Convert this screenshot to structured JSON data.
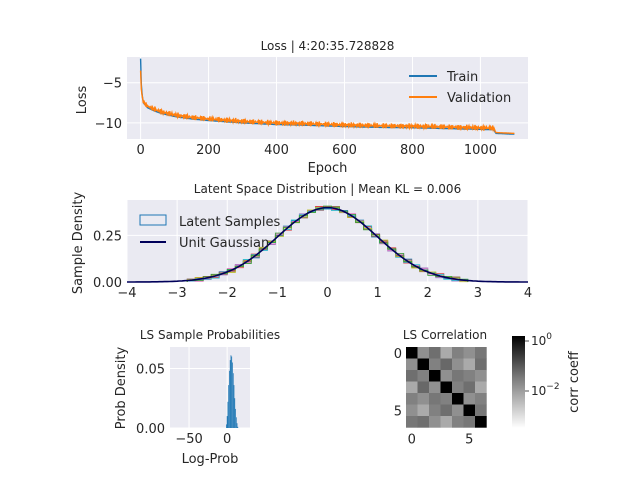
{
  "chart_data": [
    {
      "type": "line",
      "title": "Loss | 4:20:35.728828",
      "xlabel": "Epoch",
      "ylabel": "Loss",
      "xlim": [
        -40,
        1140
      ],
      "ylim": [
        -12.0,
        -1.8
      ],
      "xticks": [
        0,
        200,
        400,
        600,
        800,
        1000
      ],
      "xtick_labels": [
        "0",
        "200",
        "400",
        "600",
        "800",
        "1000"
      ],
      "yticks": [
        -10,
        -5
      ],
      "ytick_labels": [
        "−10",
        "−5"
      ],
      "grid": true,
      "legend_position": "top-right",
      "series": [
        {
          "name": "Train",
          "color": "#1f77b4",
          "x": [
            0,
            2,
            5,
            10,
            20,
            40,
            60,
            100,
            150,
            200,
            300,
            400,
            500,
            600,
            700,
            800,
            900,
            1000,
            1040,
            1045,
            1100
          ],
          "y": [
            -2.0,
            -5.2,
            -6.8,
            -7.6,
            -8.1,
            -8.5,
            -8.8,
            -9.2,
            -9.5,
            -9.7,
            -10.0,
            -10.2,
            -10.3,
            -10.45,
            -10.55,
            -10.6,
            -10.7,
            -10.8,
            -10.85,
            -11.3,
            -11.4
          ]
        },
        {
          "name": "Validation",
          "color": "#ff7f0e",
          "x": [
            0,
            2,
            5,
            10,
            20,
            40,
            60,
            100,
            150,
            200,
            300,
            400,
            500,
            600,
            700,
            800,
            900,
            1000,
            1040,
            1045,
            1100
          ],
          "y": [
            -3.5,
            -5.8,
            -6.9,
            -7.5,
            -7.9,
            -8.3,
            -8.6,
            -9.0,
            -9.3,
            -9.5,
            -9.8,
            -10.0,
            -10.1,
            -10.25,
            -10.35,
            -10.4,
            -10.5,
            -10.6,
            -10.65,
            -11.2,
            -11.3
          ]
        }
      ]
    },
    {
      "type": "line",
      "title": "Latent Space Distribution | Mean KL = 0.006",
      "xlabel": "",
      "ylabel": "Sample Density",
      "xlim": [
        -4,
        4
      ],
      "ylim": [
        0,
        0.44
      ],
      "xticks": [
        -4,
        -3,
        -2,
        -1,
        0,
        1,
        2,
        3,
        4
      ],
      "xtick_labels": [
        "−4",
        "−3",
        "−2",
        "−1",
        "0",
        "1",
        "2",
        "3",
        "4"
      ],
      "yticks": [
        0.0,
        0.25
      ],
      "ytick_labels": [
        "0.00",
        "0.25"
      ],
      "grid": true,
      "legend_position": "top-left",
      "series": [
        {
          "name": "Latent Samples",
          "color": "#1f77b4",
          "style": "step-histogram",
          "distribution": "standard-normal",
          "x_range": [
            -2.8,
            2.8
          ]
        },
        {
          "name": "Unit Gaussian",
          "color": "#00005a",
          "style": "line",
          "distribution": "standard-normal",
          "x_range": [
            -4,
            4
          ]
        }
      ],
      "extra_histogram_colors": [
        "#9467bd",
        "#d62728",
        "#8c564b",
        "#e377c2",
        "#17becf",
        "#bcbd22",
        "#2ca02c"
      ]
    },
    {
      "type": "bar",
      "title": "LS Sample Probabilities",
      "xlabel": "Log-Prob",
      "ylabel": "Prob Density",
      "xlim": [
        -75,
        30
      ],
      "ylim": [
        0,
        0.068
      ],
      "xticks": [
        -50,
        0
      ],
      "xtick_labels": [
        "−50",
        "0"
      ],
      "yticks": [
        0.0,
        0.05
      ],
      "ytick_labels": [
        "0.00",
        "0.05"
      ],
      "grid": true,
      "bar_color": "#1f77b4",
      "bin_centers": [
        -1,
        0,
        1,
        2,
        3,
        4,
        5,
        6,
        7,
        8,
        9,
        10,
        11,
        12,
        13,
        14
      ],
      "values": [
        0.003,
        0.01,
        0.022,
        0.036,
        0.048,
        0.057,
        0.061,
        0.06,
        0.055,
        0.046,
        0.036,
        0.025,
        0.016,
        0.009,
        0.004,
        0.001
      ]
    },
    {
      "type": "heatmap",
      "title": "LS Correlation",
      "xlabel": "",
      "ylabel": "",
      "xticks": [
        0,
        5
      ],
      "xtick_labels": [
        "0",
        "5"
      ],
      "yticks": [
        0,
        5
      ],
      "ytick_labels": [
        "0",
        "5"
      ],
      "colormap": "gray_r",
      "scale": "log",
      "colorbar_label": "corr coeff",
      "colorbar_ticks": [
        "10",
        "10"
      ],
      "colorbar_tick_exponents": [
        "0",
        "−2"
      ],
      "matrix": [
        [
          1.0,
          0.02,
          0.05,
          0.01,
          0.03,
          0.02,
          0.04
        ],
        [
          0.02,
          1.0,
          0.03,
          0.06,
          0.02,
          0.01,
          0.05
        ],
        [
          0.05,
          0.03,
          1.0,
          0.02,
          0.04,
          0.03,
          0.02
        ],
        [
          0.01,
          0.06,
          0.02,
          1.0,
          0.03,
          0.05,
          0.01
        ],
        [
          0.03,
          0.02,
          0.04,
          0.03,
          1.0,
          0.02,
          0.03
        ],
        [
          0.02,
          0.01,
          0.03,
          0.05,
          0.02,
          1.0,
          0.04
        ],
        [
          0.04,
          0.05,
          0.02,
          0.01,
          0.03,
          0.04,
          1.0
        ]
      ]
    }
  ]
}
